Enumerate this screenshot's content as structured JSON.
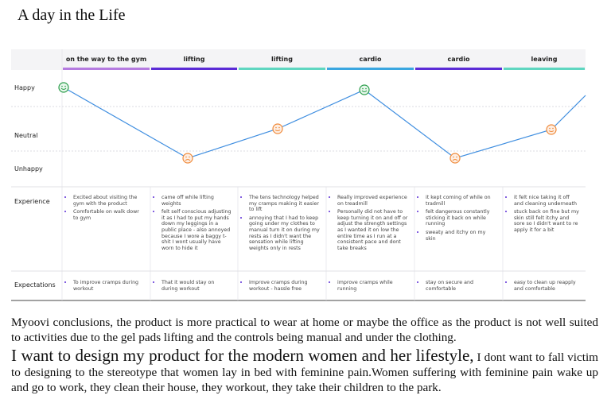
{
  "title": "A day in the Life",
  "rows": {
    "moods": [
      "Happy",
      "Neutral",
      "Unhappy"
    ],
    "experience_label": "Experience",
    "expectations_label": "Expectations"
  },
  "stages": [
    {
      "name": "on the way to the gym",
      "experience": [
        "Excited about visiting the gym with the product",
        "Comfortable on walk dowr to gym"
      ],
      "expectations": [
        "To improve cramps during workout"
      ]
    },
    {
      "name": "lifting",
      "experience": [
        "came off while lifting weights",
        "felt self conscious adjusting it as I had to put my hands down my leggings in a public place - also annoyed because I wore a baggy t-shit I wont usually have worn to hide it"
      ],
      "expectations": [
        "That it would stay on during workout"
      ]
    },
    {
      "name": "lifting",
      "experience": [
        "The tens technology helped my cramps making it easier to lift",
        "annoying that I had to keep going under my clothes to manual turn it on during my rests as I didn't want the sensation while lifting weights only in rests"
      ],
      "expectations": [
        "Improve cramps during workout - hassle free"
      ]
    },
    {
      "name": "cardio",
      "experience": [
        "Really improved experience on treadmill",
        "Personally did not have to keep turning it on and off or adjust the strength settings as I wanted it on low the entire time as I run at a consistent pace and dont take breaks"
      ],
      "expectations": [
        "improve cramps while running"
      ]
    },
    {
      "name": "cardio",
      "experience": [
        "it kept coming of while on tradmill",
        "felt dangerous constantly sticking it back on while running",
        "sweaty and itchy on my skin"
      ],
      "expectations": [
        "stay on secure and comfortable"
      ]
    },
    {
      "name": "leaving",
      "experience": [
        "it felt nice taking it off and cleaning underneath",
        "stuck back on fine but my skin still felt itchy and sore so I didn't want to re apply it for a bit"
      ],
      "expectations": [
        "easy to clean up reapply and comfortable"
      ]
    }
  ],
  "conclusion": "Myoovi conclusions, the product is more practical to wear at home or maybe the office as the product is not well suited to activities due to the gel pads lifting and the controls being manual and under the clothing.",
  "statement": {
    "lead": "I want to design my product for the modern women and her lifestyle,",
    "rest": "I dont want to fall victim to designing to the stereotype  that women lay in bed with feminine  pain.Women suffering with feminine pain wake up and go to work, they clean their  house, they workout, they take their  children to the park."
  }
}
